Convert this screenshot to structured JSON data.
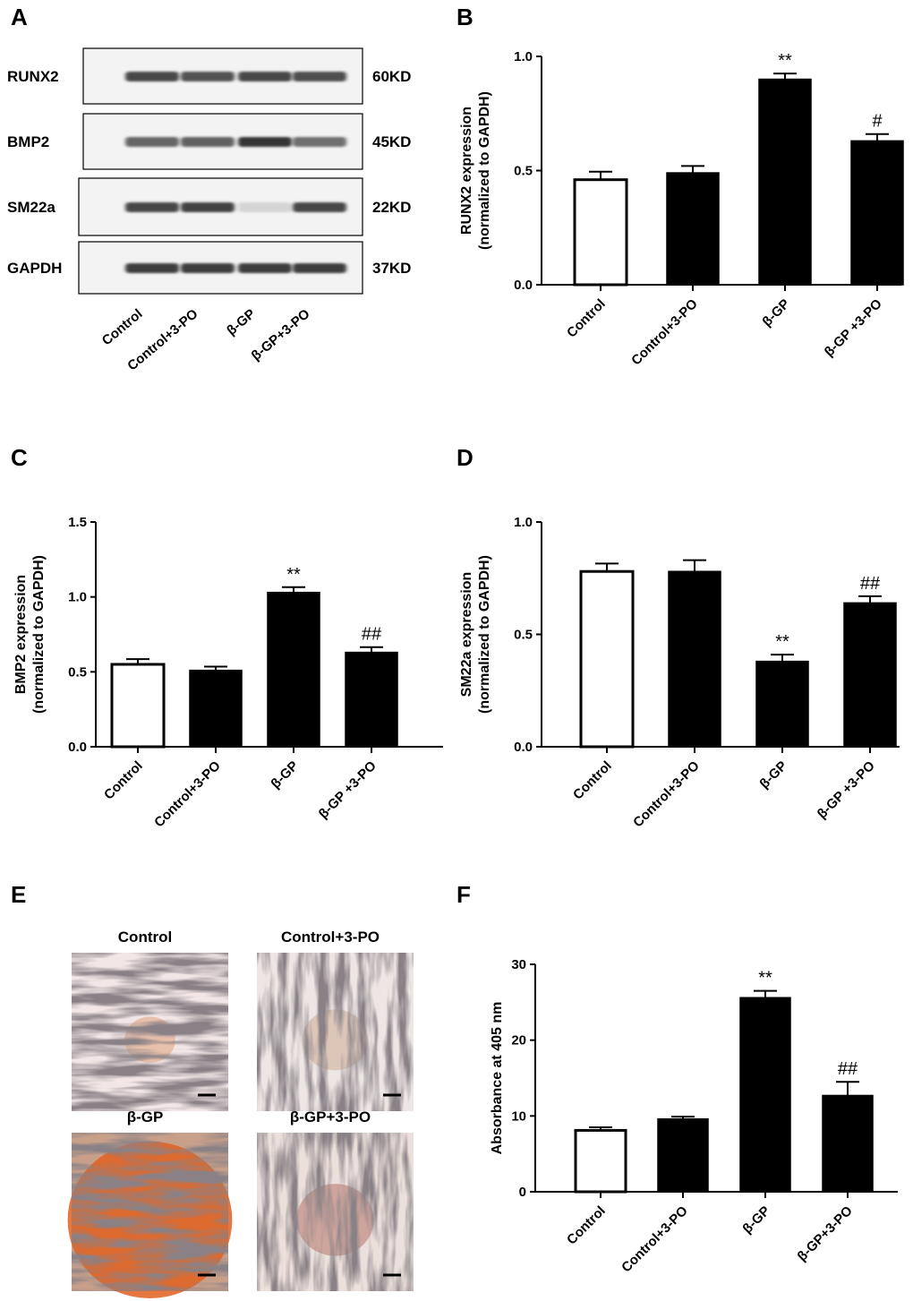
{
  "colors": {
    "axis": "#000000",
    "bar_control": "#ffffff",
    "bar_treated": "#000000",
    "blot_bg": "#f3f3f3",
    "band": "#2a2a2a"
  },
  "panel_labels": [
    "A",
    "B",
    "C",
    "D",
    "E",
    "F"
  ],
  "western_blot": {
    "proteins": [
      {
        "name": "RUNX2",
        "size": "60KD",
        "intensity": [
          0.85,
          0.8,
          0.85,
          0.82
        ]
      },
      {
        "name": "BMP2",
        "size": "45KD",
        "intensity": [
          0.7,
          0.72,
          0.95,
          0.65
        ]
      },
      {
        "name": "SM22a",
        "size": "22KD",
        "intensity": [
          0.85,
          0.88,
          0.15,
          0.85
        ]
      },
      {
        "name": "GAPDH",
        "size": "37KD",
        "intensity": [
          0.9,
          0.9,
          0.9,
          0.9
        ]
      }
    ],
    "lanes": [
      "Control",
      "Control+3-PO",
      "β-GP",
      "β-GP+3-PO"
    ]
  },
  "microscopy": {
    "panels": [
      {
        "title": "Control",
        "tint": "#f2e6e6",
        "stain": "#e8b9a0",
        "stain_level": 0.05
      },
      {
        "title": "Control+3-PO",
        "tint": "#eee6e4",
        "stain": "#d8c0b0",
        "stain_level": 0.1
      },
      {
        "title": "β-GP",
        "tint": "#c8a08a",
        "stain": "#e0601e",
        "stain_level": 0.85
      },
      {
        "title": "β-GP+3-PO",
        "tint": "#ece0dc",
        "stain": "#c99a90",
        "stain_level": 0.15
      }
    ]
  },
  "chart_data": [
    {
      "panel": "B",
      "type": "bar",
      "categories": [
        "Control",
        "Control+3-PO",
        "β-GP",
        "β-GP +3-PO"
      ],
      "values": [
        0.46,
        0.49,
        0.9,
        0.63
      ],
      "errors": [
        0.035,
        0.03,
        0.025,
        0.03
      ],
      "annotations": [
        "",
        "",
        "**",
        "#"
      ],
      "ylabel_lines": [
        "RUNX2 expression",
        "(normalized to GAPDH)"
      ],
      "ylim": [
        0,
        1.0
      ],
      "yticks": [
        "0.0",
        "0.5",
        "1.0"
      ],
      "grid": false
    },
    {
      "panel": "C",
      "type": "bar",
      "categories": [
        "Control",
        "Control+3-PO",
        "β-GP",
        "β-GP +3-PO"
      ],
      "values": [
        0.55,
        0.51,
        1.03,
        0.63
      ],
      "errors": [
        0.035,
        0.025,
        0.035,
        0.035
      ],
      "annotations": [
        "",
        "",
        "**",
        "##"
      ],
      "ylabel_lines": [
        "BMP2 expression",
        "(normalized to GAPDH)"
      ],
      "ylim": [
        0,
        1.5
      ],
      "yticks": [
        "0.0",
        "0.5",
        "1.0",
        "1.5"
      ],
      "grid": false
    },
    {
      "panel": "D",
      "type": "bar",
      "categories": [
        "Control",
        "Control+3-PO",
        "β-GP",
        "β-GP +3-PO"
      ],
      "values": [
        0.78,
        0.78,
        0.38,
        0.64
      ],
      "errors": [
        0.035,
        0.05,
        0.03,
        0.03
      ],
      "annotations": [
        "",
        "",
        "**",
        "##"
      ],
      "ylabel_lines": [
        "SM22a expression",
        "(normalized to GAPDH)"
      ],
      "ylim": [
        0,
        1.0
      ],
      "yticks": [
        "0.0",
        "0.5",
        "1.0"
      ],
      "grid": false
    },
    {
      "panel": "F",
      "type": "bar",
      "categories": [
        "Control",
        "Control+3-PO",
        "β-GP",
        "β-GP+3-PO"
      ],
      "values": [
        8.1,
        9.6,
        25.6,
        12.7
      ],
      "errors": [
        0.4,
        0.3,
        0.9,
        1.8
      ],
      "annotations": [
        "",
        "",
        "**",
        "##"
      ],
      "ylabel_lines": [
        "Absorbance at 405 nm"
      ],
      "ylim": [
        0,
        30
      ],
      "yticks": [
        "0",
        "10",
        "20",
        "30"
      ],
      "grid": false
    }
  ]
}
